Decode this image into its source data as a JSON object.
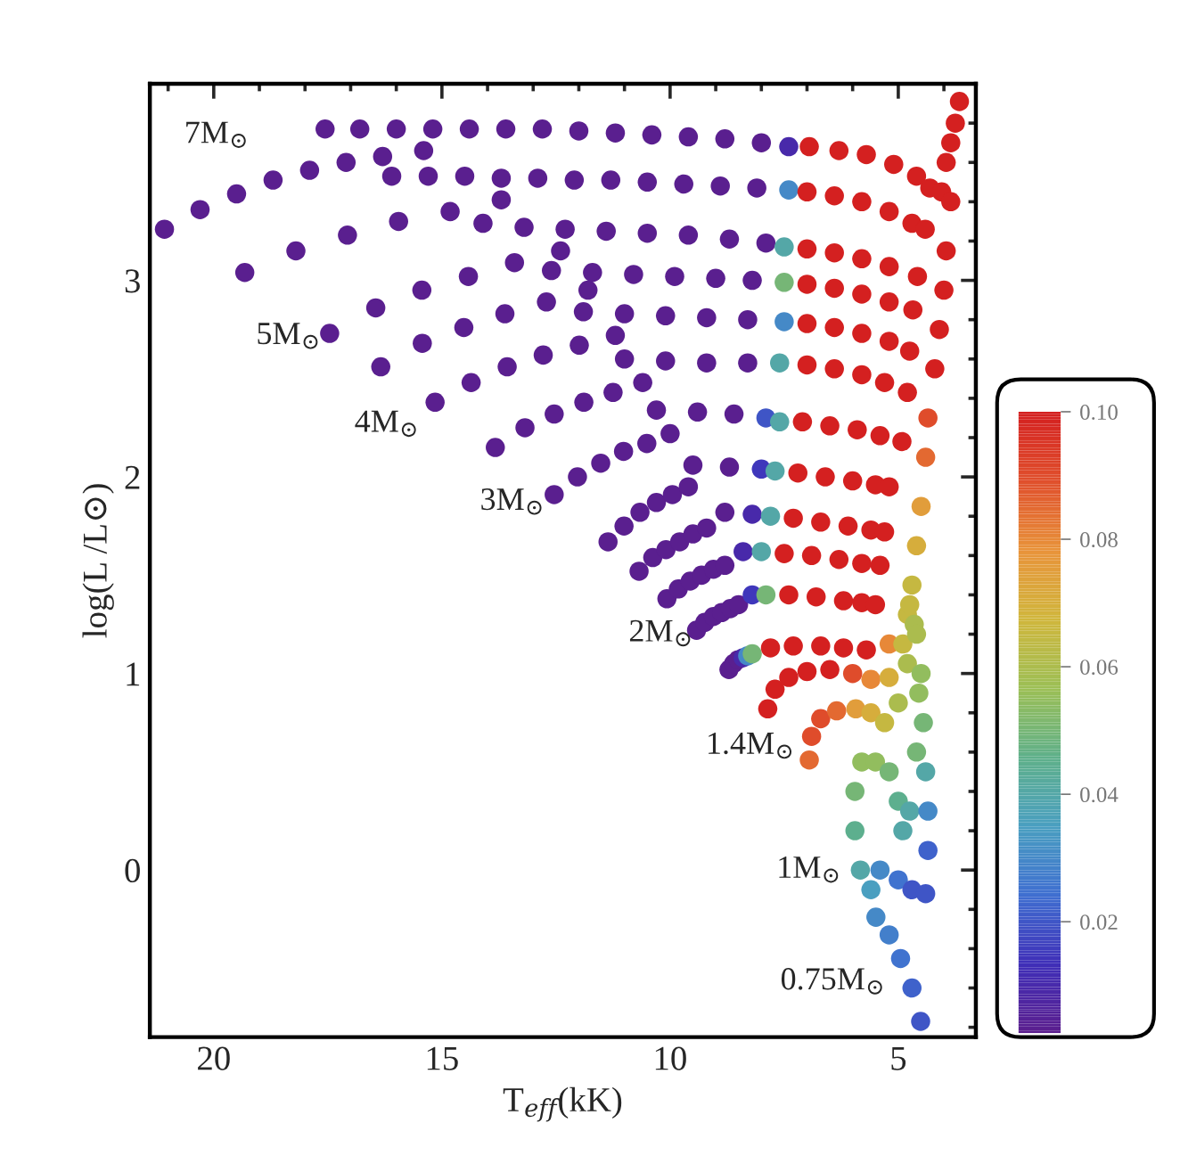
{
  "chart_data": {
    "type": "scatter",
    "xlabel": "T$_{eff}$(kK)",
    "ylabel": "log(L /L⊙)",
    "xlim": [
      21.4,
      3.3
    ],
    "ylim": [
      -0.85,
      4.0
    ],
    "xticks": [
      20,
      15,
      10,
      5
    ],
    "yticks": [
      0,
      1,
      2,
      3
    ],
    "clim": [
      0.0025,
      0.1
    ],
    "cticks": [
      0.02,
      0.04,
      0.06,
      0.08,
      {
        "value": 0.1,
        "label": "0.10"
      }
    ],
    "marker": "circle",
    "annotations": [
      "7M$_{⊙}$",
      "5M$_{⊙}$",
      "4M$_{⊙}$",
      "3M$_{⊙}$",
      "2M$_{⊙}$",
      "1.4M$_{⊙}$",
      "1M$_{⊙}$",
      "0.75M$_{⊙}$"
    ],
    "x": [
      21.08,
      20.3,
      19.5,
      18.7,
      17.9,
      17.1,
      16.3,
      15.4,
      17.56,
      16.8,
      16.0,
      15.2,
      14.4,
      13.6,
      12.8,
      12.0,
      11.2,
      10.4,
      9.6,
      8.8,
      8.0,
      7.4,
      6.95,
      6.3,
      5.7,
      5.1,
      4.6,
      4.31,
      4.05,
      3.95,
      3.85,
      3.75,
      3.66,
      19.32,
      18.2,
      17.07,
      15.95,
      14.82,
      13.7,
      16.1,
      15.3,
      14.5,
      13.7,
      12.9,
      12.1,
      11.3,
      10.5,
      9.7,
      8.9,
      8.1,
      7.4,
      7.0,
      6.4,
      5.8,
      5.2,
      4.7,
      4.41,
      3.85,
      17.46,
      16.45,
      15.44,
      14.42,
      13.41,
      12.4,
      14.1,
      13.2,
      12.3,
      11.4,
      10.5,
      9.6,
      8.7,
      7.9,
      7.5,
      7.0,
      6.4,
      5.8,
      5.2,
      4.58,
      3.95,
      16.34,
      15.43,
      14.52,
      13.62,
      12.71,
      11.8,
      12.6,
      11.7,
      10.8,
      9.9,
      9.0,
      8.2,
      7.5,
      7.0,
      6.4,
      5.8,
      5.2,
      4.68,
      4.0,
      15.15,
      14.36,
      13.57,
      12.78,
      11.99,
      11.2,
      11.9,
      11.0,
      10.1,
      9.2,
      8.3,
      7.5,
      7.0,
      6.4,
      5.8,
      5.2,
      4.75,
      4.1,
      13.83,
      13.18,
      12.54,
      11.89,
      11.25,
      10.6,
      11.0,
      10.1,
      9.2,
      8.3,
      7.6,
      7.0,
      6.4,
      5.8,
      5.3,
      4.8,
      4.2,
      12.54,
      12.03,
      11.52,
      11.02,
      10.51,
      10.0,
      10.3,
      9.4,
      8.6,
      7.9,
      7.6,
      7.1,
      6.5,
      5.9,
      5.4,
      4.92,
      4.35,
      11.36,
      11.01,
      10.66,
      10.3,
      9.95,
      9.6,
      9.5,
      8.7,
      8.0,
      7.7,
      7.2,
      6.6,
      6.0,
      5.5,
      5.2,
      4.4,
      10.68,
      10.38,
      10.09,
      9.79,
      9.5,
      9.2,
      8.8,
      8.2,
      7.8,
      7.3,
      6.7,
      6.1,
      5.6,
      5.3,
      4.5,
      10.07,
      9.82,
      9.56,
      9.31,
      9.05,
      8.8,
      8.4,
      8.0,
      7.5,
      6.9,
      6.3,
      5.8,
      5.4,
      4.6,
      9.42,
      9.24,
      9.05,
      8.87,
      8.68,
      8.5,
      8.2,
      7.9,
      7.4,
      6.8,
      6.2,
      5.8,
      5.5,
      4.7,
      8.71,
      8.61,
      8.51,
      8.4,
      8.3,
      8.2,
      7.8,
      7.3,
      6.7,
      6.2,
      5.7,
      5.2,
      4.8,
      7.86,
      7.7,
      7.4,
      7.0,
      6.5,
      6.0,
      5.6,
      5.2,
      4.9,
      4.75,
      6.95,
      6.9,
      6.7,
      6.35,
      5.93,
      5.6,
      5.3,
      5.0,
      4.8,
      4.65,
      5.83,
      5.95,
      5.95,
      5.8,
      5.5,
      5.2,
      5.0,
      4.9,
      4.75,
      4.6,
      4.55,
      4.6,
      4.51,
      4.7,
      4.95,
      5.2,
      5.49,
      5.6,
      5.4,
      5.0,
      4.7,
      4.4,
      4.35,
      4.35,
      4.4,
      4.45,
      4.5
    ],
    "values": [
      3.26,
      3.36,
      3.44,
      3.51,
      3.56,
      3.6,
      3.63,
      3.66,
      3.77,
      3.77,
      3.77,
      3.77,
      3.77,
      3.77,
      3.77,
      3.76,
      3.75,
      3.74,
      3.73,
      3.72,
      3.7,
      3.68,
      3.68,
      3.66,
      3.64,
      3.59,
      3.53,
      3.47,
      3.45,
      3.6,
      3.7,
      3.8,
      3.91,
      3.04,
      3.15,
      3.23,
      3.3,
      3.35,
      3.41,
      3.53,
      3.53,
      3.53,
      3.52,
      3.52,
      3.51,
      3.51,
      3.5,
      3.49,
      3.48,
      3.47,
      3.46,
      3.45,
      3.43,
      3.4,
      3.35,
      3.29,
      3.26,
      3.4,
      2.73,
      2.86,
      2.95,
      3.02,
      3.09,
      3.15,
      3.29,
      3.27,
      3.26,
      3.25,
      3.24,
      3.23,
      3.21,
      3.19,
      3.17,
      3.16,
      3.14,
      3.11,
      3.07,
      3.02,
      3.15,
      2.56,
      2.68,
      2.76,
      2.83,
      2.89,
      2.95,
      3.05,
      3.04,
      3.03,
      3.02,
      3.01,
      3.0,
      2.99,
      2.98,
      2.96,
      2.93,
      2.89,
      2.85,
      2.95,
      2.38,
      2.48,
      2.56,
      2.62,
      2.67,
      2.72,
      2.84,
      2.83,
      2.82,
      2.81,
      2.8,
      2.79,
      2.78,
      2.76,
      2.73,
      2.69,
      2.64,
      2.75,
      2.15,
      2.25,
      2.32,
      2.38,
      2.43,
      2.48,
      2.6,
      2.59,
      2.58,
      2.58,
      2.58,
      2.57,
      2.55,
      2.52,
      2.48,
      2.43,
      2.55,
      1.91,
      2.0,
      2.07,
      2.13,
      2.17,
      2.22,
      2.34,
      2.33,
      2.32,
      2.3,
      2.28,
      2.28,
      2.26,
      2.24,
      2.21,
      2.18,
      2.3,
      1.67,
      1.75,
      1.82,
      1.87,
      1.91,
      1.95,
      2.06,
      2.05,
      2.04,
      2.03,
      2.02,
      2.0,
      1.98,
      1.96,
      1.95,
      2.1,
      1.52,
      1.59,
      1.63,
      1.67,
      1.71,
      1.74,
      1.82,
      1.81,
      1.8,
      1.79,
      1.77,
      1.75,
      1.73,
      1.72,
      1.85,
      1.38,
      1.43,
      1.47,
      1.5,
      1.53,
      1.55,
      1.62,
      1.62,
      1.61,
      1.6,
      1.58,
      1.56,
      1.55,
      1.65,
      1.22,
      1.26,
      1.29,
      1.31,
      1.33,
      1.35,
      1.4,
      1.4,
      1.4,
      1.39,
      1.37,
      1.36,
      1.35,
      1.45,
      1.02,
      1.05,
      1.07,
      1.08,
      1.09,
      1.1,
      1.13,
      1.14,
      1.14,
      1.13,
      1.12,
      1.15,
      1.3,
      0.82,
      0.92,
      0.98,
      1.01,
      1.02,
      1.0,
      0.97,
      0.98,
      1.15,
      1.35,
      0.56,
      0.68,
      0.77,
      0.81,
      0.82,
      0.8,
      0.75,
      0.85,
      1.05,
      1.25,
      0.0,
      0.2,
      0.4,
      0.55,
      0.55,
      0.5,
      0.35,
      0.2,
      0.3,
      0.6,
      0.9,
      1.2,
      -0.77,
      -0.6,
      -0.45,
      -0.33,
      -0.24,
      -0.1,
      0.0,
      -0.05,
      -0.1,
      -0.12,
      0.1,
      0.3,
      0.5,
      0.75,
      1.0
    ],
    "cvalues": [
      0.003,
      0.003,
      0.003,
      0.003,
      0.003,
      0.003,
      0.003,
      0.003,
      0.003,
      0.003,
      0.003,
      0.003,
      0.003,
      0.003,
      0.003,
      0.003,
      0.003,
      0.003,
      0.003,
      0.003,
      0.003,
      0.01,
      0.1,
      0.1,
      0.1,
      0.1,
      0.1,
      0.1,
      0.1,
      0.1,
      0.1,
      0.1,
      0.1,
      0.003,
      0.003,
      0.003,
      0.003,
      0.003,
      0.003,
      0.003,
      0.003,
      0.003,
      0.003,
      0.003,
      0.003,
      0.003,
      0.003,
      0.003,
      0.003,
      0.003,
      0.03,
      0.1,
      0.1,
      0.1,
      0.1,
      0.1,
      0.1,
      0.1,
      0.003,
      0.003,
      0.003,
      0.003,
      0.003,
      0.003,
      0.003,
      0.003,
      0.003,
      0.003,
      0.003,
      0.003,
      0.003,
      0.003,
      0.04,
      0.1,
      0.1,
      0.1,
      0.1,
      0.1,
      0.1,
      0.003,
      0.003,
      0.003,
      0.003,
      0.003,
      0.003,
      0.003,
      0.003,
      0.003,
      0.003,
      0.003,
      0.003,
      0.05,
      0.1,
      0.1,
      0.1,
      0.1,
      0.1,
      0.1,
      0.003,
      0.003,
      0.003,
      0.003,
      0.003,
      0.003,
      0.003,
      0.003,
      0.003,
      0.003,
      0.003,
      0.03,
      0.1,
      0.1,
      0.1,
      0.1,
      0.1,
      0.1,
      0.003,
      0.003,
      0.003,
      0.003,
      0.003,
      0.003,
      0.003,
      0.003,
      0.003,
      0.003,
      0.04,
      0.1,
      0.1,
      0.1,
      0.1,
      0.1,
      0.1,
      0.003,
      0.003,
      0.003,
      0.003,
      0.003,
      0.003,
      0.003,
      0.003,
      0.003,
      0.02,
      0.04,
      0.1,
      0.1,
      0.1,
      0.1,
      0.1,
      0.09,
      0.003,
      0.003,
      0.003,
      0.003,
      0.003,
      0.003,
      0.003,
      0.003,
      0.015,
      0.04,
      0.1,
      0.1,
      0.1,
      0.1,
      0.1,
      0.085,
      0.003,
      0.003,
      0.003,
      0.003,
      0.003,
      0.003,
      0.003,
      0.01,
      0.04,
      0.1,
      0.1,
      0.1,
      0.1,
      0.1,
      0.075,
      0.003,
      0.003,
      0.003,
      0.003,
      0.003,
      0.003,
      0.01,
      0.04,
      0.1,
      0.1,
      0.1,
      0.1,
      0.1,
      0.07,
      0.003,
      0.003,
      0.003,
      0.003,
      0.003,
      0.003,
      0.015,
      0.05,
      0.1,
      0.1,
      0.1,
      0.1,
      0.1,
      0.065,
      0.003,
      0.003,
      0.003,
      0.01,
      0.03,
      0.05,
      0.1,
      0.1,
      0.1,
      0.1,
      0.1,
      0.08,
      0.065,
      0.1,
      0.1,
      0.1,
      0.1,
      0.1,
      0.09,
      0.08,
      0.07,
      0.065,
      0.065,
      0.085,
      0.09,
      0.09,
      0.085,
      0.075,
      0.07,
      0.065,
      0.06,
      0.06,
      0.06,
      0.04,
      0.045,
      0.05,
      0.055,
      0.055,
      0.05,
      0.045,
      0.04,
      0.04,
      0.05,
      0.055,
      0.06,
      0.02,
      0.022,
      0.025,
      0.028,
      0.03,
      0.035,
      0.03,
      0.025,
      0.02,
      0.02,
      0.022,
      0.03,
      0.04,
      0.05,
      0.055
    ]
  }
}
